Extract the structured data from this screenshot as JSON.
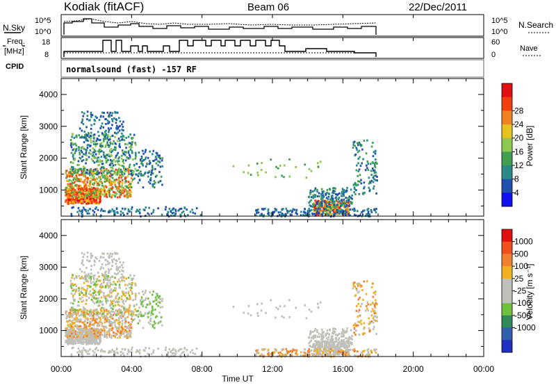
{
  "header": {
    "station": "Kodiak (fitACF)",
    "beam": "Beam 06",
    "date": "22/Dec/2011"
  },
  "status_panels": {
    "noise_left_label": "N.Sky",
    "noise_right_label": "N.Search",
    "noise_left_ticks": [
      "10^5",
      "10^0"
    ],
    "noise_right_ticks": [
      "10^5",
      "10^0"
    ],
    "freq_label_top": "Freq.",
    "freq_label_bottom": "[MHz]",
    "freq_ticks": [
      "18",
      "8"
    ],
    "nave_label": "Nave",
    "nave_ticks": [
      "60",
      "0"
    ],
    "cpid_label": "CPID",
    "cpid_text": "normalsound (fast) -157 RF"
  },
  "chart_data": [
    {
      "type": "heatmap",
      "name": "power",
      "ylabel": "Slant Range [km]",
      "ylim": [
        180,
        4500
      ],
      "yticks": [
        1000,
        2000,
        3000,
        4000
      ],
      "xlim": [
        0,
        24
      ],
      "colorbar_label": "Power [dB]",
      "colorbar_ticks": [
        4,
        8,
        12,
        16,
        20,
        24,
        28
      ],
      "colorbar_colors": [
        "#1010f0",
        "#2050b0",
        "#2a8a8a",
        "#40a050",
        "#8cc850",
        "#e8c020",
        "#f08020",
        "#f04010",
        "#e01010"
      ]
    },
    {
      "type": "heatmap",
      "name": "velocity",
      "ylabel": "Slant Range [km]",
      "ylim": [
        180,
        4500
      ],
      "yticks": [
        1000,
        2000,
        3000,
        4000
      ],
      "xlim": [
        0,
        24
      ],
      "colorbar_label": "Velocity [m s⁻¹]",
      "colorbar_ticks": [
        "1000",
        "500",
        "100",
        "25",
        "-25",
        "-100",
        "-500",
        "-1000"
      ],
      "colorbar_colors": [
        "#2030c0",
        "#3060b0",
        "#2e8a5a",
        "#70c040",
        "#c0c0b8",
        "#c0c0b8",
        "#f0b020",
        "#f08030",
        "#f05020",
        "#e01010"
      ]
    }
  ],
  "xaxis": {
    "ticks": [
      "00:00",
      "04:00",
      "08:00",
      "12:00",
      "16:00",
      "20:00",
      "00:00"
    ],
    "label": "Time UT"
  }
}
